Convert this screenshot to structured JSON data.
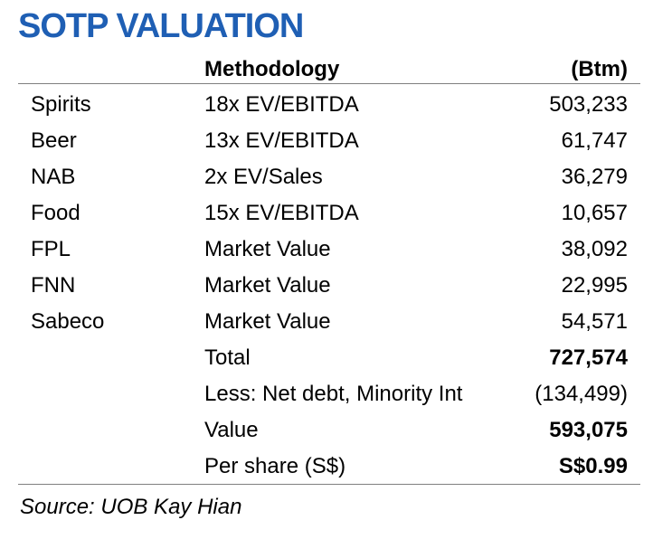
{
  "title": "SOTP VALUATION",
  "header": {
    "methodology": "Methodology",
    "unit": "(Btm)"
  },
  "rows": [
    {
      "segment": "Spirits",
      "methodology": "18x EV/EBITDA",
      "value": "503,233",
      "bold": false
    },
    {
      "segment": "Beer",
      "methodology": "13x EV/EBITDA",
      "value": "61,747",
      "bold": false
    },
    {
      "segment": "NAB",
      "methodology": "2x EV/Sales",
      "value": "36,279",
      "bold": false
    },
    {
      "segment": "Food",
      "methodology": "15x EV/EBITDA",
      "value": "10,657",
      "bold": false
    },
    {
      "segment": "FPL",
      "methodology": "Market Value",
      "value": "38,092",
      "bold": false
    },
    {
      "segment": "FNN",
      "methodology": "Market Value",
      "value": "22,995",
      "bold": false
    },
    {
      "segment": "Sabeco",
      "methodology": "Market Value",
      "value": "54,571",
      "bold": false
    },
    {
      "segment": "",
      "methodology": "Total",
      "value": "727,574",
      "bold": true
    },
    {
      "segment": "",
      "methodology": "Less: Net debt, Minority Int",
      "value": "(134,499)",
      "bold": false
    },
    {
      "segment": "",
      "methodology": "Value",
      "value": "593,075",
      "bold": true
    },
    {
      "segment": "",
      "methodology": "Per share (S$)",
      "value": "S$0.99",
      "bold": true
    }
  ],
  "source": "Source: UOB Kay Hian",
  "colors": {
    "title": "#1f5fb4",
    "rule": "#7f7f7f"
  }
}
